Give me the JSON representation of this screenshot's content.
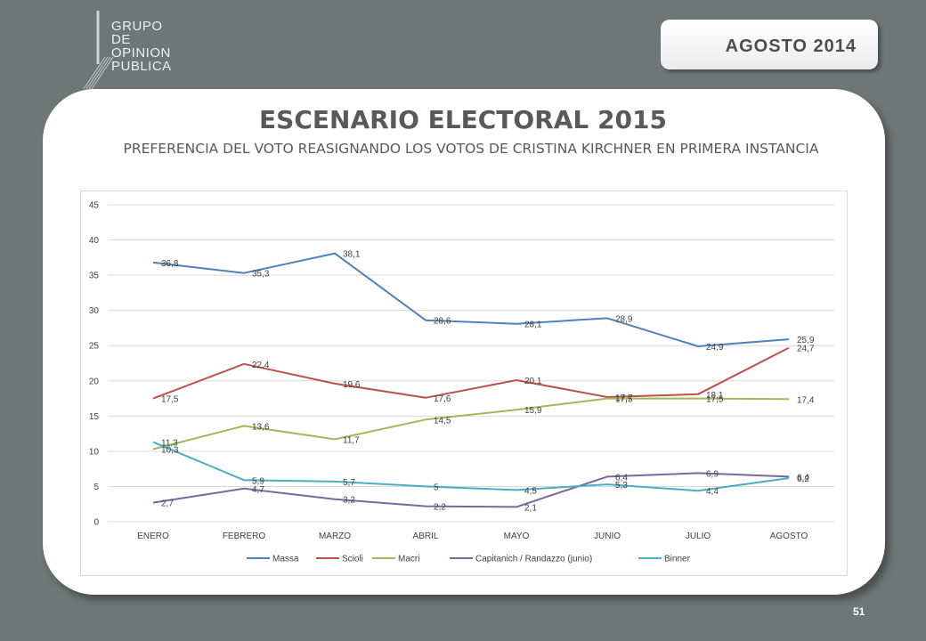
{
  "logo": {
    "lines": [
      "GRUPO",
      "DE",
      "OPINION",
      "PUBLICA"
    ]
  },
  "date_badge": "AGOSTO  2014",
  "title": "ESCENARIO ELECTORAL 2015",
  "subtitle": "PREFERENCIA DEL VOTO REASIGNANDO LOS VOTOS DE CRISTINA KIRCHNER EN PRIMERA INSTANCIA",
  "page_number": "51",
  "chart_data": {
    "type": "line",
    "categories": [
      "ENERO",
      "FEBRERO",
      "MARZO",
      "ABRIL",
      "MAYO",
      "JUNIO",
      "JULIO",
      "AGOSTO"
    ],
    "ylim": [
      0,
      45
    ],
    "yticks": [
      0,
      5,
      10,
      15,
      20,
      25,
      30,
      35,
      40,
      45
    ],
    "grid": true,
    "legend_position": "bottom",
    "series": [
      {
        "name": "Massa",
        "color": "#4f81bd",
        "values": [
          36.8,
          35.3,
          38.1,
          28.6,
          28.1,
          28.9,
          24.9,
          25.9
        ],
        "labels": [
          "36,8",
          "35,3",
          "38,1",
          "28,6",
          "28,1",
          "28,9",
          "24,9",
          "25,9"
        ]
      },
      {
        "name": "Scioli",
        "color": "#c0504d",
        "values": [
          17.5,
          22.4,
          19.6,
          17.6,
          20.1,
          17.7,
          18.1,
          24.7
        ],
        "labels": [
          "17,5",
          "22,4",
          "19,6",
          "17,6",
          "20,1",
          "17,7",
          "18,1",
          "24,7"
        ]
      },
      {
        "name": "Macri",
        "color": "#9bbb59",
        "values": [
          10.3,
          13.6,
          11.7,
          14.5,
          15.9,
          17.5,
          17.5,
          17.4
        ],
        "labels": [
          "10,3",
          "13,6",
          "11,7",
          "14,5",
          "15,9",
          "17,5",
          "17,5",
          "17,4"
        ]
      },
      {
        "name": "Capitanich / Randazzo (junio)",
        "color": "#8064a2",
        "values": [
          2.7,
          4.7,
          3.2,
          2.2,
          2.1,
          6.4,
          6.9,
          6.4
        ],
        "labels": [
          "2,7",
          "4,7",
          "3,2",
          "2,2",
          "2,1",
          "6,4",
          "6,9",
          "6,4"
        ]
      },
      {
        "name": "Binner",
        "color": "#4bacc6",
        "values": [
          11.3,
          5.9,
          5.7,
          5.0,
          4.5,
          5.3,
          4.4,
          6.2
        ],
        "labels": [
          "11,3",
          "5,9",
          "5,7",
          "5",
          "4,5",
          "5,3",
          "4,4",
          "6,2"
        ]
      }
    ]
  }
}
